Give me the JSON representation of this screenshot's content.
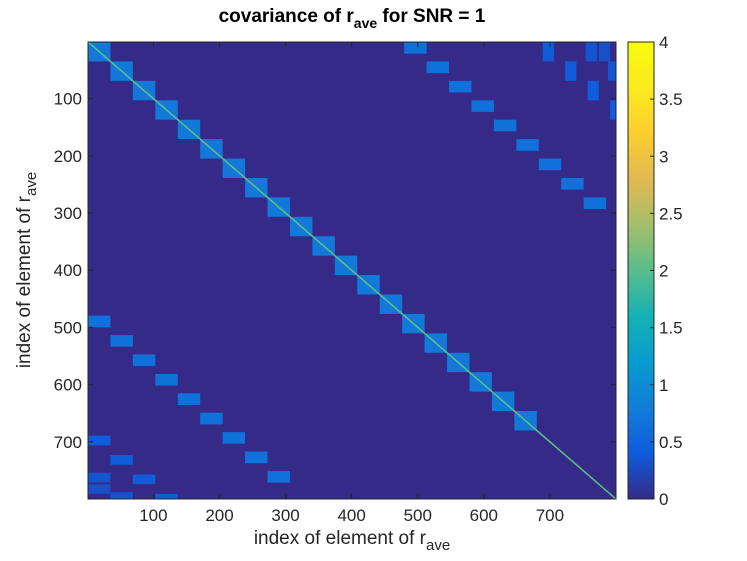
{
  "chart_data": {
    "type": "heatmap",
    "title": "covariance of r",
    "title_sub": "ave",
    "title_tail": " for SNR = 1",
    "xlabel": "index of element of r",
    "xlabel_sub": "ave",
    "ylabel": "index of element of r",
    "ylabel_sub": "ave",
    "xlim": [
      1,
      800
    ],
    "ylim": [
      1,
      800
    ],
    "y_reversed": true,
    "xticks": [
      100,
      200,
      300,
      400,
      500,
      600,
      700
    ],
    "yticks": [
      100,
      200,
      300,
      400,
      500,
      600,
      700
    ],
    "colorbar": {
      "range": [
        0,
        4
      ],
      "ticks": [
        0,
        0.5,
        1,
        1.5,
        2,
        2.5,
        3,
        3.5,
        4
      ],
      "tick_labels": [
        "0",
        "0.5",
        "1",
        "1.5",
        "2",
        "2.5",
        "3",
        "3.5",
        "4"
      ],
      "colormap": "parula"
    },
    "n": 800,
    "background_value": 0,
    "diagonal_value": 2,
    "block_size": 34,
    "main_diagonal_blocks": {
      "start": 1,
      "count": 20,
      "value": 0.75
    },
    "offdiagonal_block_bands": [
      {
        "row_start": 480,
        "col_start": 1,
        "count": 9,
        "value": 0.65
      },
      {
        "row_start": 1,
        "col_start": 480,
        "count": 9,
        "value": 0.65
      }
    ],
    "secondary_bands": [
      {
        "row_start": 690,
        "col_start": 1,
        "count": 7,
        "value": 0.4
      },
      {
        "row_start": 1,
        "col_start": 690,
        "count": 7,
        "value": 0.4
      },
      {
        "row_start": 755,
        "col_start": 1,
        "count": 3,
        "value": 0.35
      },
      {
        "row_start": 1,
        "col_start": 755,
        "count": 3,
        "value": 0.35
      },
      {
        "row_start": 775,
        "col_start": 1,
        "count": 3,
        "value": 0.3
      },
      {
        "row_start": 1,
        "col_start": 775,
        "count": 3,
        "value": 0.3
      }
    ],
    "grid": false,
    "legend": "none"
  }
}
